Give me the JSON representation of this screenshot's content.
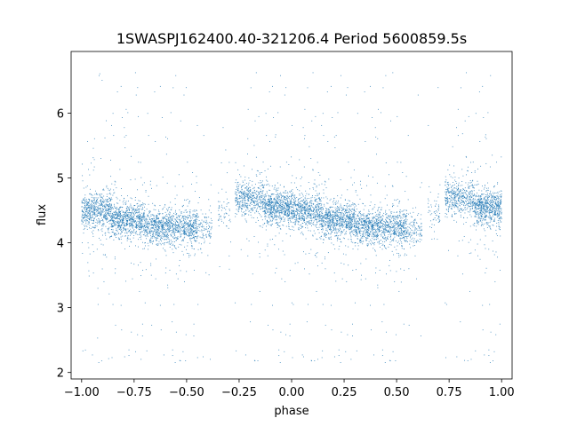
{
  "chart_data": {
    "type": "scatter",
    "title": "1SWASPJ162400.40-321206.4 Period 5600859.5s",
    "xlabel": "phase",
    "ylabel": "flux",
    "xlim": [
      -1.05,
      1.05
    ],
    "ylim": [
      1.9,
      6.95
    ],
    "xticks": [
      -1.0,
      -0.75,
      -0.5,
      -0.25,
      0.0,
      0.25,
      0.5,
      0.75,
      1.0
    ],
    "xtick_labels": [
      "−1.00",
      "−0.75",
      "−0.50",
      "−0.25",
      "0.00",
      "0.25",
      "0.50",
      "0.75",
      "1.00"
    ],
    "yticks": [
      2,
      3,
      4,
      5,
      6
    ],
    "ytick_labels": [
      "2",
      "3",
      "4",
      "5",
      "6"
    ],
    "grid": false,
    "marker_color": "#1f77b4",
    "series": [
      {
        "phase_clusters": [
          {
            "x": [
              -1.0,
              -0.86
            ],
            "flux_center": 4.5,
            "count": 650
          },
          {
            "x": [
              -0.86,
              -0.7
            ],
            "flux_center": 4.35,
            "count": 800
          },
          {
            "x": [
              -0.7,
              -0.45
            ],
            "flux_center": 4.25,
            "count": 1100
          },
          {
            "x": [
              -0.45,
              -0.38
            ],
            "flux_center": 4.2,
            "count": 120
          },
          {
            "x": [
              -0.35,
              -0.29
            ],
            "flux_center": 4.45,
            "count": 60
          },
          {
            "x": [
              -0.27,
              -0.13
            ],
            "flux_center": 4.7,
            "count": 500
          },
          {
            "x": [
              -0.13,
              0.0
            ],
            "flux_center": 4.55,
            "count": 700
          },
          {
            "x": [
              0.0,
              0.14
            ],
            "flux_center": 4.5,
            "count": 650
          },
          {
            "x": [
              0.14,
              0.3
            ],
            "flux_center": 4.35,
            "count": 800
          },
          {
            "x": [
              0.3,
              0.55
            ],
            "flux_center": 4.25,
            "count": 1100
          },
          {
            "x": [
              0.55,
              0.62
            ],
            "flux_center": 4.2,
            "count": 120
          },
          {
            "x": [
              0.65,
              0.71
            ],
            "flux_center": 4.45,
            "count": 60
          },
          {
            "x": [
              0.73,
              0.87
            ],
            "flux_center": 4.7,
            "count": 500
          },
          {
            "x": [
              0.87,
              1.0
            ],
            "flux_center": 4.55,
            "count": 700
          }
        ],
        "outlier_range": [
          2.1,
          6.7
        ]
      }
    ]
  }
}
